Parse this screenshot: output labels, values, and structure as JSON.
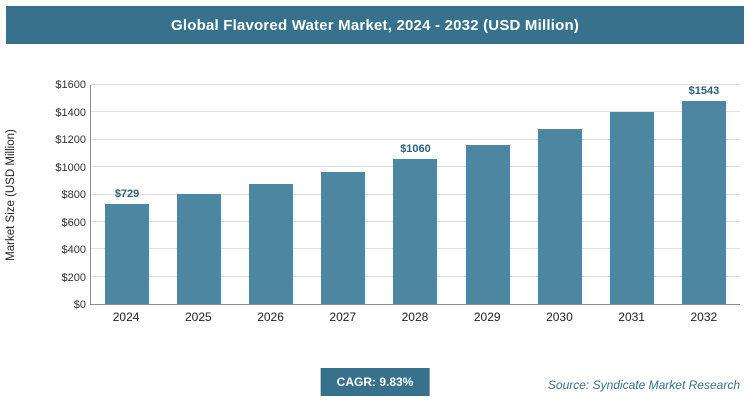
{
  "header": {
    "title": "Global Flavored Water Market, 2024 - 2032 (USD Million)"
  },
  "chart_data": {
    "type": "bar",
    "title": "Global Flavored Water Market, 2024 - 2032 (USD Million)",
    "categories": [
      "2024",
      "2025",
      "2026",
      "2027",
      "2028",
      "2029",
      "2030",
      "2031",
      "2032"
    ],
    "values": [
      729,
      801,
      879,
      966,
      1060,
      1165,
      1280,
      1405,
      1543
    ],
    "bar_labels": [
      "$729",
      null,
      null,
      null,
      "$1060",
      null,
      null,
      null,
      "$1543"
    ],
    "xlabel": "",
    "ylabel": "Market Size (USD Million)",
    "ylim": [
      0,
      1600
    ],
    "ytick_labels": [
      "$0",
      "$200",
      "$400",
      "$600",
      "$800",
      "$1000",
      "$1200",
      "$1400",
      "$1600"
    ],
    "ytick_values": [
      0,
      200,
      400,
      600,
      800,
      1000,
      1200,
      1400,
      1600
    ],
    "grid": "horizontal",
    "legend": "none",
    "bar_color": "#4c86a0",
    "label_color": "#2d5f7a",
    "accent_color": "#38718c"
  },
  "footer": {
    "cagr_label": "CAGR: 9.83%",
    "source": "Source: Syndicate Market Research"
  }
}
